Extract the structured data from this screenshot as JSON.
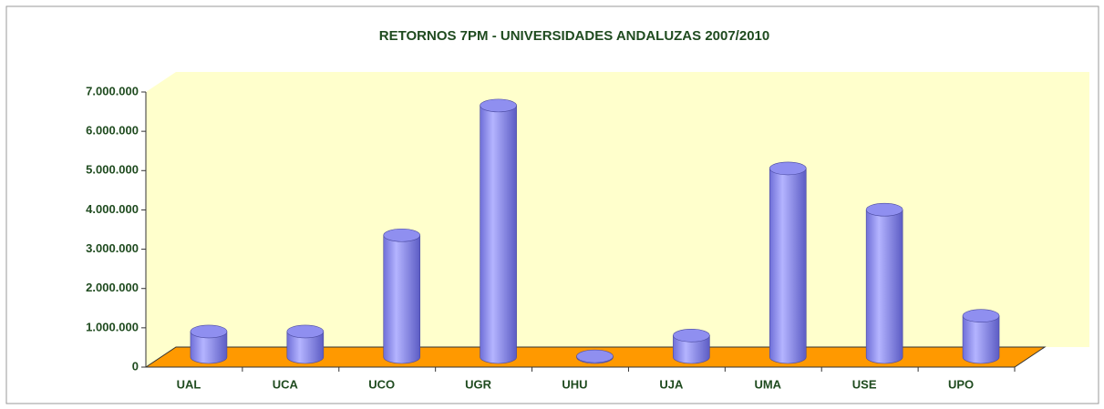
{
  "chart_data": {
    "type": "bar3d",
    "title": "RETORNOS 7PM - UNIVERSIDADES ANDALUZAS 2007/2010",
    "categories": [
      "UAL",
      "UCA",
      "UCO",
      "UGR",
      "UHU",
      "UJA",
      "UMA",
      "USE",
      "UPO"
    ],
    "values": [
      650000,
      650000,
      3100000,
      6400000,
      20000,
      550000,
      4800000,
      3750000,
      1050000
    ],
    "color": "#8f8ff0",
    "ylim": [
      0,
      7000000
    ],
    "yticks": [
      0,
      {
        "value": 1000000,
        "label": "1.000.000"
      },
      {
        "value": 2000000,
        "label": "2.000.000"
      },
      {
        "value": 3000000,
        "label": "3.000.000"
      },
      {
        "value": 4000000,
        "label": "4.000.000"
      },
      {
        "value": 5000000,
        "label": "5.000.000"
      },
      {
        "value": 6000000,
        "label": "6.000.000"
      },
      {
        "value": 7000000,
        "label": "7.000.000"
      }
    ],
    "grid": false
  }
}
